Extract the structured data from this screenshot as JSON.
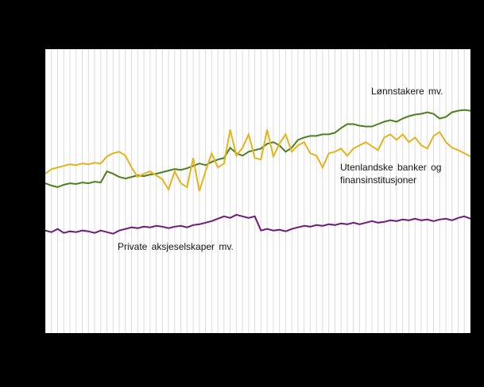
{
  "colors": {
    "background": "#000000",
    "plot_background": "#ffffff",
    "grid": "#dcdcdc",
    "text": "#141414"
  },
  "annotations": {
    "green_label": "Lønnstakere mv.",
    "yellow_label": "Utenlandske banker og finansinstitusjoner",
    "purple_label": "Private aksjeselskaper mv."
  },
  "chart_data": {
    "type": "line",
    "title": "",
    "xlabel": "",
    "ylabel": "",
    "x_count": 70,
    "ylim": [
      0,
      360
    ],
    "grid": {
      "vertical": true,
      "horizontal": false,
      "color": "#dcdcdc"
    },
    "legend_position": "inline-annotations",
    "series": [
      {
        "name": "Lønnstakere mv.",
        "color": "#4e7f1d",
        "values": [
          190,
          187,
          185,
          188,
          190,
          189,
          191,
          190,
          192,
          191,
          205,
          202,
          198,
          196,
          198,
          200,
          199,
          201,
          202,
          204,
          206,
          208,
          207,
          209,
          212,
          215,
          213,
          217,
          220,
          222,
          235,
          228,
          225,
          230,
          232,
          234,
          240,
          242,
          238,
          230,
          235,
          245,
          248,
          250,
          250,
          252,
          252,
          254,
          260,
          265,
          265,
          263,
          262,
          262,
          265,
          268,
          270,
          268,
          272,
          275,
          277,
          278,
          280,
          278,
          272,
          274,
          280,
          282,
          283,
          282
        ]
      },
      {
        "name": "Utenlandske banker og finansinstitusjoner",
        "color": "#e2b41e",
        "values": [
          202,
          208,
          210,
          212,
          214,
          213,
          215,
          214,
          216,
          215,
          224,
          228,
          230,
          225,
          210,
          198,
          202,
          205,
          200,
          195,
          182,
          205,
          190,
          185,
          222,
          180,
          205,
          228,
          210,
          215,
          258,
          225,
          235,
          252,
          222,
          220,
          258,
          224,
          240,
          252,
          230,
          238,
          242,
          228,
          225,
          210,
          228,
          230,
          234,
          225,
          234,
          238,
          242,
          237,
          232,
          248,
          252,
          245,
          252,
          242,
          248,
          238,
          234,
          250,
          255,
          242,
          235,
          232,
          228,
          224
        ]
      },
      {
        "name": "Private aksjeselskaper mv.",
        "color": "#6f1a7d",
        "values": [
          130,
          128,
          132,
          127,
          129,
          128,
          130,
          129,
          127,
          130,
          128,
          126,
          130,
          132,
          134,
          133,
          135,
          134,
          136,
          135,
          133,
          135,
          136,
          134,
          137,
          138,
          140,
          142,
          145,
          148,
          146,
          150,
          148,
          146,
          148,
          130,
          132,
          130,
          131,
          129,
          132,
          134,
          136,
          135,
          137,
          136,
          138,
          137,
          139,
          138,
          140,
          138,
          140,
          142,
          140,
          141,
          143,
          142,
          144,
          143,
          145,
          143,
          144,
          142,
          144,
          145,
          143,
          146,
          148,
          145
        ]
      }
    ]
  }
}
